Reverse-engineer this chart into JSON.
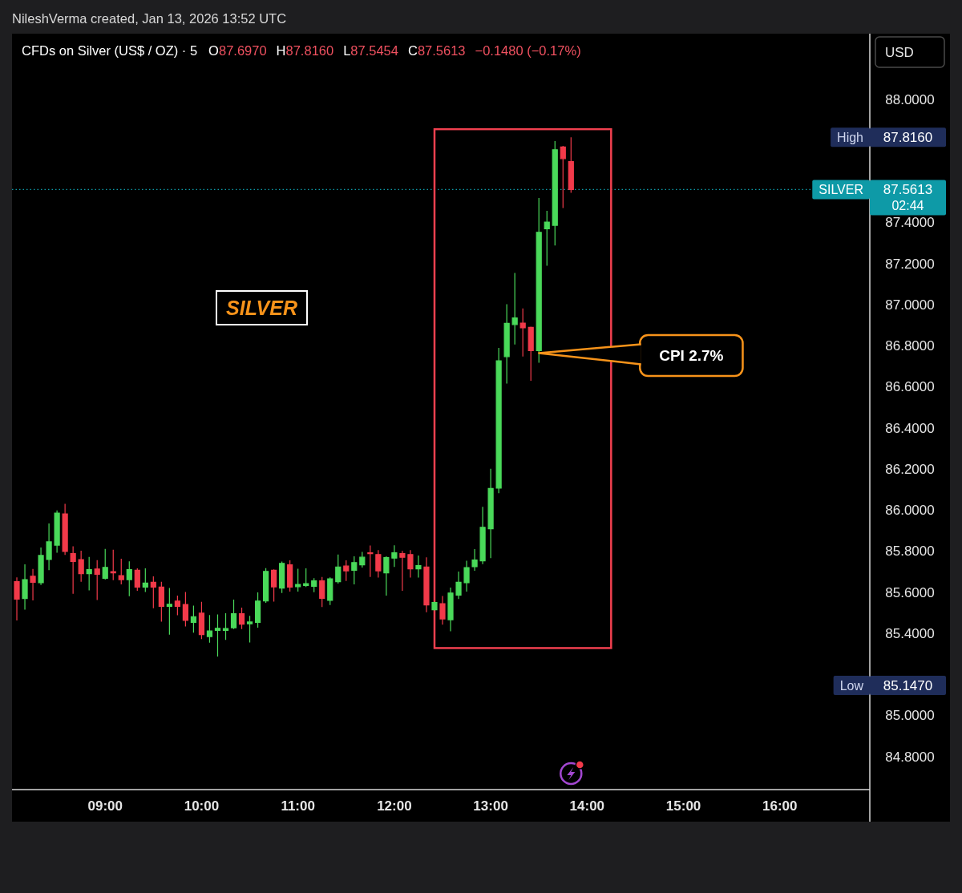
{
  "chart_data": {
    "type": "candlestick",
    "title": "CFDs on Silver (US$ / OZ) · 5",
    "annotations": [
      "NileshVerma created, Jan 13, 2026 13:52 UTC",
      "O87.6970",
      "H87.8160",
      "L87.5454",
      "C87.5613",
      "−0.1480 (−0.17%)",
      "SILVER",
      {
        "text": "CPI 2.7%",
        "x": "2026-01-13T13:30",
        "y": 86.765
      },
      "High",
      "87.8160",
      "Low",
      "85.1470",
      "USD",
      "87.5613",
      "02:44"
    ],
    "x": [
      "2026-01-13T08:05",
      "2026-01-13T08:10",
      "2026-01-13T08:15",
      "2026-01-13T08:20",
      "2026-01-13T08:25",
      "2026-01-13T08:30",
      "2026-01-13T08:35",
      "2026-01-13T08:40",
      "2026-01-13T08:45",
      "2026-01-13T08:50",
      "2026-01-13T08:55",
      "2026-01-13T09:00",
      "2026-01-13T09:05",
      "2026-01-13T09:10",
      "2026-01-13T09:15",
      "2026-01-13T09:20",
      "2026-01-13T09:25",
      "2026-01-13T09:30",
      "2026-01-13T09:35",
      "2026-01-13T09:40",
      "2026-01-13T09:45",
      "2026-01-13T09:50",
      "2026-01-13T09:55",
      "2026-01-13T10:00",
      "2026-01-13T10:05",
      "2026-01-13T10:10",
      "2026-01-13T10:15",
      "2026-01-13T10:20",
      "2026-01-13T10:25",
      "2026-01-13T10:30",
      "2026-01-13T10:35",
      "2026-01-13T10:40",
      "2026-01-13T10:45",
      "2026-01-13T10:50",
      "2026-01-13T10:55",
      "2026-01-13T11:00",
      "2026-01-13T11:05",
      "2026-01-13T11:10",
      "2026-01-13T11:15",
      "2026-01-13T11:20",
      "2026-01-13T11:25",
      "2026-01-13T11:30",
      "2026-01-13T11:35",
      "2026-01-13T11:40",
      "2026-01-13T11:45",
      "2026-01-13T11:50",
      "2026-01-13T11:55",
      "2026-01-13T12:00",
      "2026-01-13T12:05",
      "2026-01-13T12:10",
      "2026-01-13T12:15",
      "2026-01-13T12:20",
      "2026-01-13T12:25",
      "2026-01-13T12:30",
      "2026-01-13T12:35",
      "2026-01-13T12:40",
      "2026-01-13T12:45",
      "2026-01-13T12:50",
      "2026-01-13T12:55",
      "2026-01-13T13:00",
      "2026-01-13T13:05",
      "2026-01-13T13:10",
      "2026-01-13T13:15",
      "2026-01-13T13:20",
      "2026-01-13T13:25",
      "2026-01-13T13:30",
      "2026-01-13T13:35",
      "2026-01-13T13:40",
      "2026-01-13T13:45",
      "2026-01-13T13:50"
    ],
    "ohlc": [
      [
        85.652,
        85.673,
        85.463,
        85.567
      ],
      [
        85.57,
        85.737,
        85.516,
        85.662
      ],
      [
        85.679,
        85.714,
        85.561,
        85.649
      ],
      [
        85.647,
        85.819,
        85.636,
        85.78
      ],
      [
        85.76,
        85.936,
        85.708,
        85.846
      ],
      [
        85.83,
        85.999,
        85.793,
        85.986
      ],
      [
        85.982,
        86.031,
        85.782,
        85.799
      ],
      [
        85.789,
        85.824,
        85.593,
        85.751
      ],
      [
        85.76,
        85.803,
        85.652,
        85.691
      ],
      [
        85.691,
        85.773,
        85.61,
        85.711
      ],
      [
        85.714,
        85.757,
        85.563,
        85.688
      ],
      [
        85.669,
        85.812,
        85.662,
        85.722
      ],
      [
        85.701,
        85.808,
        85.66,
        85.695
      ],
      [
        85.682,
        85.764,
        85.639,
        85.662
      ],
      [
        85.662,
        85.751,
        85.581,
        85.711
      ],
      [
        85.708,
        85.717,
        85.608,
        85.626
      ],
      [
        85.626,
        85.717,
        85.602,
        85.645
      ],
      [
        85.649,
        85.678,
        85.523,
        85.626
      ],
      [
        85.626,
        85.652,
        85.458,
        85.532
      ],
      [
        85.532,
        85.621,
        85.394,
        85.542
      ],
      [
        85.558,
        85.584,
        85.489,
        85.532
      ],
      [
        85.541,
        85.602,
        85.434,
        85.464
      ],
      [
        85.454,
        85.536,
        85.404,
        85.482
      ],
      [
        85.499,
        85.554,
        85.373,
        85.395
      ],
      [
        85.385,
        85.49,
        85.355,
        85.412
      ],
      [
        85.415,
        85.493,
        85.288,
        85.425
      ],
      [
        85.415,
        85.499,
        85.369,
        85.424
      ],
      [
        85.428,
        85.565,
        85.421,
        85.496
      ],
      [
        85.496,
        85.526,
        85.421,
        85.445
      ],
      [
        85.447,
        85.486,
        85.356,
        85.456
      ],
      [
        85.454,
        85.6,
        85.428,
        85.558
      ],
      [
        85.558,
        85.718,
        85.549,
        85.702
      ],
      [
        85.708,
        85.712,
        85.555,
        85.627
      ],
      [
        85.621,
        85.75,
        85.597,
        85.741
      ],
      [
        85.734,
        85.756,
        85.604,
        85.626
      ],
      [
        85.628,
        85.715,
        85.604,
        85.639
      ],
      [
        85.634,
        85.717,
        85.626,
        85.643
      ],
      [
        85.63,
        85.669,
        85.601,
        85.656
      ],
      [
        85.656,
        85.675,
        85.529,
        85.571
      ],
      [
        85.561,
        85.673,
        85.539,
        85.666
      ],
      [
        85.652,
        85.784,
        85.643,
        85.724
      ],
      [
        85.728,
        85.756,
        85.656,
        85.705
      ],
      [
        85.708,
        85.776,
        85.639,
        85.745
      ],
      [
        85.734,
        85.797,
        85.721,
        85.771
      ],
      [
        85.793,
        85.828,
        85.675,
        85.789
      ],
      [
        85.784,
        85.806,
        85.672,
        85.705
      ],
      [
        85.695,
        85.776,
        85.584,
        85.769
      ],
      [
        85.767,
        85.829,
        85.724,
        85.793
      ],
      [
        85.789,
        85.802,
        85.608,
        85.771
      ],
      [
        85.784,
        85.806,
        85.672,
        85.715
      ],
      [
        85.715,
        85.78,
        85.672,
        85.73
      ],
      [
        85.724,
        85.771,
        85.503,
        85.539
      ],
      [
        85.516,
        85.555,
        85.512,
        85.551
      ],
      [
        85.545,
        85.582,
        85.443,
        85.471
      ],
      [
        85.467,
        85.623,
        85.411,
        85.597
      ],
      [
        85.587,
        85.701,
        85.568,
        85.649
      ],
      [
        85.647,
        85.754,
        85.604,
        85.721
      ],
      [
        85.725,
        85.811,
        85.705,
        85.758
      ],
      [
        85.754,
        86.017,
        85.738,
        85.917
      ],
      [
        85.91,
        86.202,
        85.767,
        86.106
      ],
      [
        86.108,
        86.79,
        86.083,
        86.727
      ],
      [
        86.748,
        87.003,
        86.617,
        86.91
      ],
      [
        86.904,
        87.155,
        86.807,
        86.936
      ],
      [
        86.911,
        86.982,
        86.748,
        86.888
      ],
      [
        86.89,
        86.894,
        86.63,
        86.777
      ],
      [
        86.777,
        87.52,
        86.718,
        87.353
      ],
      [
        87.37,
        87.458,
        87.19,
        87.403
      ],
      [
        87.387,
        87.797,
        87.289,
        87.755
      ],
      [
        87.768,
        87.774,
        87.471,
        87.712
      ],
      [
        87.697,
        87.816,
        87.5454,
        87.5613
      ]
    ],
    "colors": [
      "#f23a4a",
      "#4ad95a",
      "#f23a4a",
      "#4ad95a",
      "#4ad95a",
      "#4ad95a",
      "#f23a4a",
      "#f23a4a",
      "#f23a4a",
      "#4ad95a",
      "#f23a4a",
      "#4ad95a",
      "#f23a4a",
      "#f23a4a",
      "#4ad95a",
      "#f23a4a",
      "#4ad95a",
      "#f23a4a",
      "#f23a4a",
      "#4ad95a",
      "#f23a4a",
      "#f23a4a",
      "#4ad95a",
      "#f23a4a",
      "#4ad95a",
      "#4ad95a",
      "#4ad95a",
      "#4ad95a",
      "#f23a4a",
      "#4ad95a",
      "#4ad95a",
      "#4ad95a",
      "#f23a4a",
      "#4ad95a",
      "#f23a4a",
      "#4ad95a",
      "#4ad95a",
      "#4ad95a",
      "#f23a4a",
      "#4ad95a",
      "#4ad95a",
      "#f23a4a",
      "#4ad95a",
      "#4ad95a",
      "#f23a4a",
      "#f23a4a",
      "#4ad95a",
      "#4ad95a",
      "#f23a4a",
      "#f23a4a",
      "#4ad95a",
      "#f23a4a",
      "#4ad95a",
      "#f23a4a",
      "#4ad95a",
      "#4ad95a",
      "#4ad95a",
      "#4ad95a",
      "#4ad95a",
      "#4ad95a",
      "#4ad95a",
      "#4ad95a",
      "#4ad95a",
      "#f23a4a",
      "#f23a4a",
      "#4ad95a",
      "#4ad95a",
      "#4ad95a",
      "#f23a4a",
      "#f23a4a"
    ],
    "xlim": [
      "2026-01-13T08:02",
      "2026-01-13T16:56"
    ],
    "xticks": [
      {
        "value": "2026-01-13T09:00",
        "label": "09:00"
      },
      {
        "value": "2026-01-13T10:00",
        "label": "10:00"
      },
      {
        "value": "2026-01-13T11:00",
        "label": "11:00"
      },
      {
        "value": "2026-01-13T12:00",
        "label": "12:00"
      },
      {
        "value": "2026-01-13T13:00",
        "label": "13:00"
      },
      {
        "value": "2026-01-13T14:00",
        "label": "14:00"
      },
      {
        "value": "2026-01-13T15:00",
        "label": "15:00"
      },
      {
        "value": "2026-01-13T16:00",
        "label": "16:00"
      }
    ],
    "ylim": [
      84.64,
      88.32
    ],
    "yticks": [
      {
        "value": 88,
        "label": "88.0000"
      },
      {
        "value": 87.4,
        "label": "87.4000"
      },
      {
        "value": 87.2,
        "label": "87.2000"
      },
      {
        "value": 87,
        "label": "87.0000"
      },
      {
        "value": 86.8,
        "label": "86.8000"
      },
      {
        "value": 86.6,
        "label": "86.6000"
      },
      {
        "value": 86.4,
        "label": "86.4000"
      },
      {
        "value": 86.2,
        "label": "86.2000"
      },
      {
        "value": 86,
        "label": "86.0000"
      },
      {
        "value": 85.8,
        "label": "85.8000"
      },
      {
        "value": 85.6,
        "label": "85.6000"
      },
      {
        "value": 85.4,
        "label": "85.4000"
      },
      {
        "value": 85,
        "label": "85.0000"
      },
      {
        "value": 84.8,
        "label": "84.8000"
      }
    ],
    "ref_lines": [
      {
        "axis": "y",
        "value": 87.5613,
        "label": "SILVER",
        "color": "#0e9aa7",
        "line_style": "dotted"
      }
    ]
  }
}
